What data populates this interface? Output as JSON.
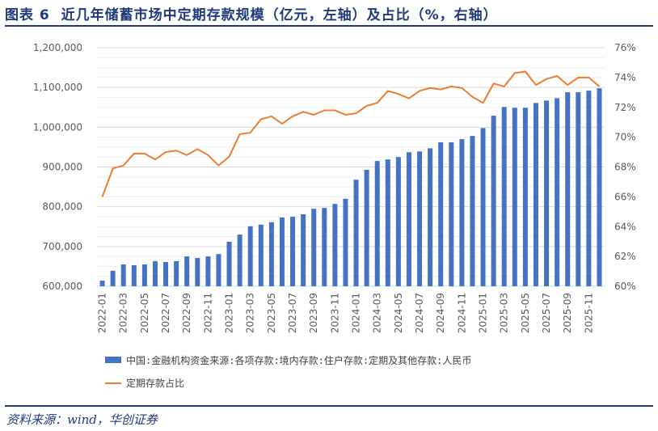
{
  "title": "图表 6  近几年储蓄市场中定期存款规模（亿元，左轴）及占比（%，右轴）",
  "source": "资料来源：wind，华创证券",
  "chart_data": {
    "type": "bar+line",
    "title": "",
    "categories": [
      "2022-01",
      "2022-02",
      "2022-03",
      "2022-04",
      "2022-05",
      "2022-06",
      "2022-07",
      "2022-08",
      "2022-09",
      "2022-10",
      "2022-11",
      "2022-12",
      "2023-01",
      "2023-02",
      "2023-03",
      "2023-04",
      "2023-05",
      "2023-06",
      "2023-07",
      "2023-08",
      "2023-09",
      "2023-10",
      "2023-11",
      "2023-12",
      "2024-01",
      "2024-02",
      "2024-03",
      "2024-04",
      "2024-05",
      "2024-06",
      "2024-07",
      "2024-08",
      "2024-09",
      "2024-10",
      "2024-11",
      "2024-12",
      "2025-01",
      "2025-02",
      "2025-03",
      "2025-04",
      "2025-05",
      "2025-06",
      "2025-07",
      "2025-08",
      "2025-09",
      "2025-10",
      "2025-11",
      "2025-12"
    ],
    "xtick_labels": [
      "2022-01",
      "2022-03",
      "2022-05",
      "2022-07",
      "2022-09",
      "2022-11",
      "2023-01",
      "2023-03",
      "2023-05",
      "2023-07",
      "2023-09",
      "2023-11",
      "2024-01",
      "2024-03",
      "2024-05",
      "2024-07",
      "2024-09",
      "2024-11",
      "2025-01",
      "2025-03",
      "2025-05",
      "2025-07",
      "2025-09",
      "2025-11"
    ],
    "left_axis": {
      "ylim": [
        600000,
        1200000
      ],
      "ticks": [
        "600,000",
        "700,000",
        "800,000",
        "900,000",
        "1,000,000",
        "1,100,000",
        "1,200,000"
      ]
    },
    "right_axis": {
      "ylim": [
        60,
        76
      ],
      "ticks": [
        "60%",
        "62%",
        "64%",
        "66%",
        "68%",
        "70%",
        "72%",
        "74%",
        "76%"
      ]
    },
    "grid": true,
    "legend_position": "bottom",
    "series": [
      {
        "name": "中国:金融机构资金来源:各项存款:境内存款:住户存款:定期及其他存款:人民币",
        "type": "bar",
        "axis": "left",
        "color": "#4472c4",
        "values": [
          614000,
          639000,
          655000,
          653000,
          655000,
          663000,
          661000,
          663000,
          675000,
          671000,
          675000,
          681000,
          712000,
          730000,
          751000,
          755000,
          761000,
          773000,
          775000,
          781000,
          795000,
          797000,
          807000,
          820000,
          868000,
          893000,
          915000,
          919000,
          925000,
          937000,
          939000,
          947000,
          962000,
          962000,
          970000,
          978000,
          998000,
          1029000,
          1051000,
          1049000,
          1049000,
          1061000,
          1067000,
          1073000,
          1088000,
          1088000,
          1092000,
          1098000
        ]
      },
      {
        "name": "定期存款占比",
        "type": "line",
        "axis": "right",
        "color": "#ed7d31",
        "values": [
          66.0,
          67.9,
          68.1,
          68.9,
          68.9,
          68.5,
          69.0,
          69.1,
          68.8,
          69.2,
          68.8,
          68.1,
          68.7,
          70.2,
          70.3,
          71.2,
          71.4,
          70.9,
          71.4,
          71.7,
          71.5,
          71.8,
          71.8,
          71.5,
          71.6,
          72.1,
          72.3,
          73.1,
          72.9,
          72.6,
          73.1,
          73.3,
          73.2,
          73.4,
          73.3,
          72.7,
          72.3,
          73.6,
          73.4,
          74.3,
          74.4,
          73.5,
          73.9,
          74.1,
          73.5,
          74.0,
          74.0,
          73.4
        ]
      }
    ]
  }
}
